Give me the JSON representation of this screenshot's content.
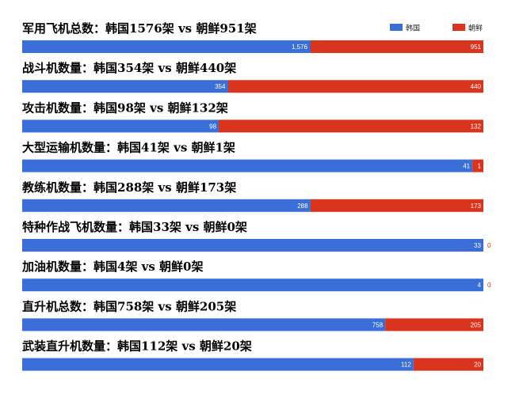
{
  "chart_data": {
    "type": "bar",
    "orientation": "horizontal-stacked-100",
    "legend": {
      "placement": "top-right",
      "entries": [
        "韩国",
        "朝鲜"
      ]
    },
    "colors": {
      "korea": "#3a6fd8",
      "dprk": "#d9351e"
    },
    "series": [
      {
        "name": "韩国",
        "color": "#3a6fd8"
      },
      {
        "name": "朝鲜",
        "color": "#d9351e"
      }
    ],
    "rows": [
      {
        "title": "军用飞机总数：韩国1576架 vs 朝鲜951架",
        "korea": 1576,
        "dprk": 951,
        "korea_label": "1,576",
        "dprk_label": "951"
      },
      {
        "title": "战斗机数量：韩国354架 vs 朝鲜440架",
        "korea": 354,
        "dprk": 440,
        "korea_label": "354",
        "dprk_label": "440"
      },
      {
        "title": "攻击机数量：韩国98架 vs 朝鲜132架",
        "korea": 98,
        "dprk": 132,
        "korea_label": "98",
        "dprk_label": "132"
      },
      {
        "title": "大型运输机数量：韩国41架 vs 朝鲜1架",
        "korea": 41,
        "dprk": 1,
        "korea_label": "41",
        "dprk_label": "1"
      },
      {
        "title": "教练机数量：韩国288架 vs 朝鲜173架",
        "korea": 288,
        "dprk": 173,
        "korea_label": "288",
        "dprk_label": "173"
      },
      {
        "title": "特种作战飞机数量：韩国33架 vs 朝鲜0架",
        "korea": 33,
        "dprk": 0,
        "korea_label": "33",
        "dprk_label": "0"
      },
      {
        "title": "加油机数量：韩国4架 vs 朝鲜0架",
        "korea": 4,
        "dprk": 0,
        "korea_label": "4",
        "dprk_label": "0"
      },
      {
        "title": "直升机总数：韩国758架 vs 朝鲜205架",
        "korea": 758,
        "dprk": 205,
        "korea_label": "758",
        "dprk_label": "205"
      },
      {
        "title": "武装直升机数量：韩国112架 vs 朝鲜20架",
        "korea": 112,
        "dprk": 20,
        "korea_label": "112",
        "dprk_label": "20"
      }
    ]
  }
}
